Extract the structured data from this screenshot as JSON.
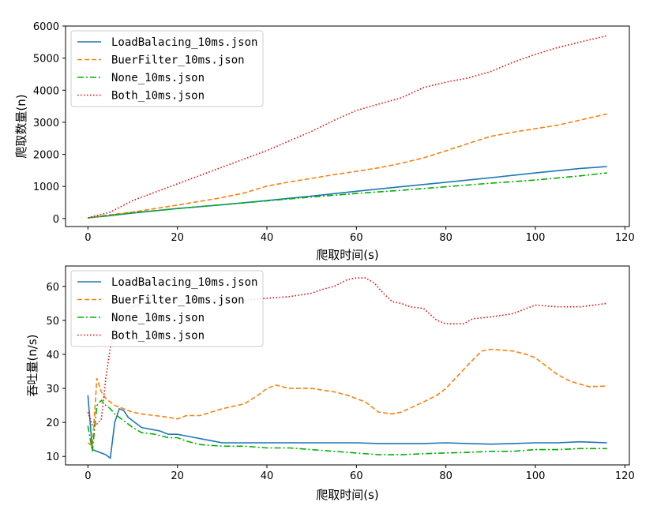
{
  "chart_data": [
    {
      "type": "line",
      "xlabel": "爬取时间(s)",
      "ylabel": "爬取数量(n)",
      "xlim": [
        -5,
        121
      ],
      "ylim": [
        -250,
        6000
      ],
      "xticks": [
        0,
        20,
        40,
        60,
        80,
        100,
        120
      ],
      "yticks": [
        0,
        1000,
        2000,
        3000,
        4000,
        5000,
        6000
      ],
      "legend_position": "upper-left",
      "series": [
        {
          "name": "LoadBalacing_10ms.json",
          "color": "#1f77b4",
          "dash": "solid",
          "x": [
            0,
            5,
            10,
            20,
            30,
            40,
            50,
            60,
            70,
            80,
            90,
            100,
            110,
            116
          ],
          "y": [
            20,
            90,
            170,
            310,
            430,
            560,
            700,
            850,
            990,
            1130,
            1270,
            1420,
            1560,
            1620
          ]
        },
        {
          "name": "BuerFilter_10ms.json",
          "color": "#ff7f0e",
          "dash": "dashed",
          "x": [
            0,
            5,
            10,
            20,
            30,
            35,
            40,
            45,
            50,
            55,
            60,
            65,
            70,
            75,
            80,
            85,
            90,
            95,
            100,
            105,
            110,
            116
          ],
          "y": [
            20,
            120,
            200,
            420,
            650,
            800,
            1010,
            1140,
            1250,
            1370,
            1470,
            1580,
            1720,
            1890,
            2110,
            2340,
            2560,
            2690,
            2800,
            2910,
            3070,
            3260
          ]
        },
        {
          "name": "None_10ms.json",
          "color": "#00b200",
          "dash": "dashdot",
          "x": [
            0,
            5,
            10,
            20,
            30,
            40,
            50,
            60,
            70,
            80,
            90,
            100,
            110,
            116
          ],
          "y": [
            20,
            100,
            180,
            310,
            430,
            550,
            670,
            780,
            880,
            990,
            1100,
            1200,
            1330,
            1420
          ]
        },
        {
          "name": "Both_10ms.json",
          "color": "#ee0000",
          "dash": "dotted",
          "x": [
            0,
            5,
            10,
            20,
            30,
            40,
            50,
            55,
            60,
            65,
            70,
            75,
            80,
            85,
            90,
            95,
            100,
            105,
            110,
            116
          ],
          "y": [
            20,
            200,
            560,
            1080,
            1600,
            2120,
            2720,
            3060,
            3370,
            3570,
            3760,
            4080,
            4250,
            4380,
            4580,
            4870,
            5120,
            5330,
            5500,
            5700
          ]
        }
      ]
    },
    {
      "type": "line",
      "xlabel": "爬取时间(s)",
      "ylabel": "吞吐量(n/s)",
      "xlim": [
        -5,
        121
      ],
      "ylim": [
        7.5,
        66
      ],
      "xticks": [
        0,
        20,
        40,
        60,
        80,
        100,
        120
      ],
      "yticks": [
        10,
        20,
        30,
        40,
        50,
        60
      ],
      "legend_position": "upper-left",
      "series": [
        {
          "name": "LoadBalacing_10ms.json",
          "color": "#1f77b4",
          "dash": "solid",
          "x": [
            0,
            1,
            2,
            3,
            4,
            5,
            6,
            7,
            8,
            9,
            10,
            12,
            14,
            16,
            18,
            20,
            22,
            24,
            26,
            28,
            30,
            35,
            40,
            45,
            50,
            55,
            60,
            65,
            70,
            75,
            80,
            85,
            90,
            95,
            100,
            105,
            110,
            116
          ],
          "y": [
            28,
            12,
            11.5,
            11,
            10.5,
            9.5,
            20,
            24,
            23.5,
            21.5,
            20.5,
            18.5,
            18,
            17.5,
            16.5,
            16.5,
            16,
            15.5,
            15,
            14.5,
            14,
            14,
            14,
            14,
            14,
            14,
            14,
            13.8,
            13.8,
            13.8,
            14,
            13.8,
            13.6,
            13.8,
            14,
            14,
            14.3,
            14
          ]
        },
        {
          "name": "BuerFilter_10ms.json",
          "color": "#ff7f0e",
          "dash": "dashed",
          "x": [
            0,
            1,
            2,
            3,
            4,
            5,
            6,
            8,
            10,
            12,
            15,
            18,
            20,
            22,
            25,
            30,
            35,
            38,
            40,
            42,
            45,
            50,
            55,
            58,
            60,
            62,
            65,
            68,
            70,
            75,
            78,
            80,
            85,
            88,
            90,
            95,
            98,
            100,
            102,
            105,
            108,
            112,
            116
          ],
          "y": [
            14,
            13,
            33,
            29,
            27,
            26,
            25,
            24,
            23,
            22.5,
            22,
            21.5,
            21,
            22,
            22,
            24,
            25.5,
            28,
            30,
            31,
            30,
            30,
            29,
            28,
            27,
            26,
            23,
            22.5,
            23,
            26,
            28,
            30,
            37,
            41,
            41.5,
            41,
            40,
            39,
            37,
            34,
            32,
            30.5,
            30.7
          ]
        },
        {
          "name": "None_10ms.json",
          "color": "#00b200",
          "dash": "dashdot",
          "x": [
            0,
            1,
            2,
            3,
            4,
            5,
            6,
            8,
            10,
            12,
            15,
            18,
            20,
            22,
            25,
            30,
            35,
            40,
            45,
            50,
            55,
            60,
            65,
            70,
            75,
            80,
            85,
            90,
            95,
            100,
            105,
            110,
            116
          ],
          "y": [
            19,
            11.5,
            25,
            26.5,
            25,
            24,
            22.5,
            20.5,
            18.5,
            17,
            16.5,
            15.5,
            15.5,
            14.5,
            13.5,
            13,
            13,
            12.5,
            12.5,
            12,
            11.5,
            11,
            10.5,
            10.5,
            10.8,
            11,
            11.2,
            11.5,
            11.5,
            12,
            12,
            12.3,
            12.3
          ]
        },
        {
          "name": "Both_10ms.json",
          "color": "#ee0000",
          "dash": "dotted",
          "x": [
            0,
            1,
            2,
            3,
            4,
            5,
            6,
            8,
            10,
            12,
            15,
            20,
            25,
            30,
            35,
            40,
            45,
            50,
            52,
            55,
            58,
            60,
            62,
            64,
            66,
            68,
            70,
            72,
            75,
            78,
            80,
            82,
            84,
            86,
            90,
            95,
            100,
            105,
            110,
            116
          ],
          "y": [
            23,
            19,
            19.5,
            21,
            33,
            42,
            48,
            52,
            54,
            55,
            55.5,
            56,
            56,
            56,
            56,
            56.5,
            57,
            58,
            59,
            60,
            62,
            62.5,
            62.5,
            61,
            58,
            55.5,
            55,
            54,
            53.5,
            50,
            49,
            49,
            49,
            50.5,
            51,
            52,
            54.5,
            54,
            54,
            55
          ]
        }
      ]
    }
  ]
}
